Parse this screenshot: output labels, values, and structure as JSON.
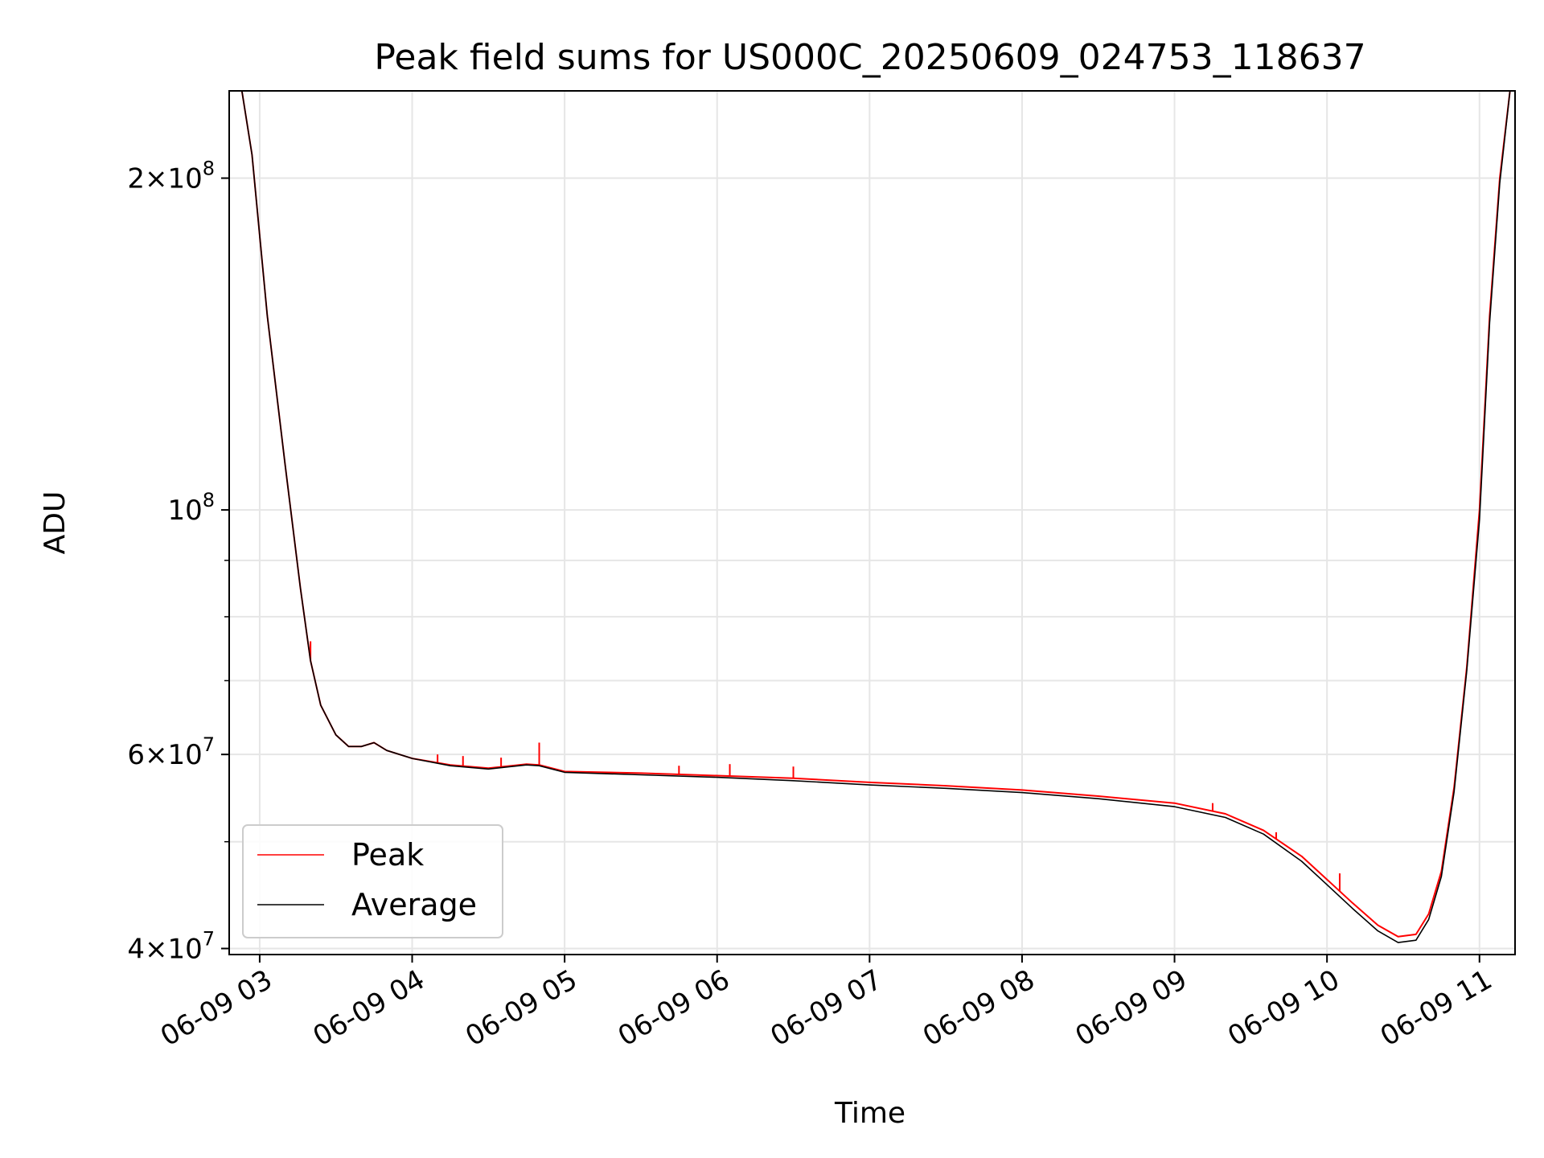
{
  "chart_data": {
    "type": "line",
    "title": "Peak field sums for US000C_20250609_024753_118637",
    "xlabel": "Time",
    "ylabel": "ADU",
    "yscale": "log",
    "ylim": [
      39500000,
      240000000
    ],
    "xlim": [
      "2025-06-09 02:48",
      "2025-06-09 11:14"
    ],
    "grid": true,
    "legend_position": "lower-left",
    "x_tick_labels": [
      "06-09 03",
      "06-09 04",
      "06-09 05",
      "06-09 06",
      "06-09 07",
      "06-09 08",
      "06-09 09",
      "06-09 10",
      "06-09 11"
    ],
    "x_ticks": [
      "2025-06-09 03:00",
      "2025-06-09 04:00",
      "2025-06-09 05:00",
      "2025-06-09 06:00",
      "2025-06-09 07:00",
      "2025-06-09 08:00",
      "2025-06-09 09:00",
      "2025-06-09 10:00",
      "2025-06-09 11:00"
    ],
    "y_major_ticks": [
      {
        "value": 40000000,
        "mantissa": "4",
        "exp": "7"
      },
      {
        "value": 60000000,
        "mantissa": "6",
        "exp": "7"
      },
      {
        "value": 100000000,
        "mantissa": "",
        "exp": "8"
      },
      {
        "value": 200000000,
        "mantissa": "2",
        "exp": "8"
      }
    ],
    "y_minor_grid": [
      50000000,
      70000000,
      80000000,
      90000000
    ],
    "series": [
      {
        "name": "Peak",
        "color": "#ff0000",
        "x": [
          "2025-06-09 02:53",
          "2025-06-09 02:57",
          "2025-06-09 03:03",
          "2025-06-09 03:10",
          "2025-06-09 03:16",
          "2025-06-09 03:20",
          "2025-06-09 03:24",
          "2025-06-09 03:30",
          "2025-06-09 03:35",
          "2025-06-09 03:40",
          "2025-06-09 03:45",
          "2025-06-09 03:50",
          "2025-06-09 04:00",
          "2025-06-09 04:15",
          "2025-06-09 04:30",
          "2025-06-09 04:45",
          "2025-06-09 04:50",
          "2025-06-09 05:00",
          "2025-06-09 05:30",
          "2025-06-09 06:00",
          "2025-06-09 06:30",
          "2025-06-09 07:00",
          "2025-06-09 07:30",
          "2025-06-09 08:00",
          "2025-06-09 08:30",
          "2025-06-09 09:00",
          "2025-06-09 09:20",
          "2025-06-09 09:35",
          "2025-06-09 09:50",
          "2025-06-09 10:00",
          "2025-06-09 10:10",
          "2025-06-09 10:20",
          "2025-06-09 10:28",
          "2025-06-09 10:35",
          "2025-06-09 10:40",
          "2025-06-09 10:45",
          "2025-06-09 10:50",
          "2025-06-09 10:55",
          "2025-06-09 11:00",
          "2025-06-09 11:04",
          "2025-06-09 11:08",
          "2025-06-09 11:12"
        ],
        "values": [
          240000000,
          210000000,
          150000000,
          110000000,
          85000000,
          73000000,
          66500000,
          62500000,
          61000000,
          61000000,
          61500000,
          60500000,
          59500000,
          58700000,
          58300000,
          58800000,
          58700000,
          57900000,
          57700000,
          57400000,
          57100000,
          56600000,
          56200000,
          55700000,
          55000000,
          54200000,
          53000000,
          51200000,
          48500000,
          46200000,
          44000000,
          42000000,
          41000000,
          41200000,
          43000000,
          47000000,
          56000000,
          72000000,
          100000000,
          150000000,
          200000000,
          240000000
        ],
        "spikes": [
          {
            "x": "2025-06-09 03:20",
            "value": 76000000
          },
          {
            "x": "2025-06-09 04:50",
            "value": 61500000
          },
          {
            "x": "2025-06-09 04:10",
            "value": 60000000
          },
          {
            "x": "2025-06-09 04:20",
            "value": 59800000
          },
          {
            "x": "2025-06-09 04:35",
            "value": 59600000
          },
          {
            "x": "2025-06-09 05:45",
            "value": 58600000
          },
          {
            "x": "2025-06-09 06:05",
            "value": 58800000
          },
          {
            "x": "2025-06-09 06:30",
            "value": 58500000
          },
          {
            "x": "2025-06-09 09:15",
            "value": 54200000
          },
          {
            "x": "2025-06-09 09:40",
            "value": 51000000
          },
          {
            "x": "2025-06-09 10:05",
            "value": 46800000
          }
        ]
      },
      {
        "name": "Average",
        "color": "#000000",
        "x": [
          "2025-06-09 02:53",
          "2025-06-09 02:57",
          "2025-06-09 03:03",
          "2025-06-09 03:10",
          "2025-06-09 03:16",
          "2025-06-09 03:20",
          "2025-06-09 03:24",
          "2025-06-09 03:30",
          "2025-06-09 03:35",
          "2025-06-09 03:40",
          "2025-06-09 03:45",
          "2025-06-09 03:50",
          "2025-06-09 04:00",
          "2025-06-09 04:15",
          "2025-06-09 04:30",
          "2025-06-09 04:45",
          "2025-06-09 04:50",
          "2025-06-09 05:00",
          "2025-06-09 05:30",
          "2025-06-09 06:00",
          "2025-06-09 06:30",
          "2025-06-09 07:00",
          "2025-06-09 07:30",
          "2025-06-09 08:00",
          "2025-06-09 08:30",
          "2025-06-09 09:00",
          "2025-06-09 09:20",
          "2025-06-09 09:35",
          "2025-06-09 09:50",
          "2025-06-09 10:00",
          "2025-06-09 10:10",
          "2025-06-09 10:20",
          "2025-06-09 10:28",
          "2025-06-09 10:35",
          "2025-06-09 10:40",
          "2025-06-09 10:45",
          "2025-06-09 10:50",
          "2025-06-09 10:55",
          "2025-06-09 11:00",
          "2025-06-09 11:04",
          "2025-06-09 11:08",
          "2025-06-09 11:12"
        ],
        "values": [
          240000000,
          210000000,
          150000000,
          110000000,
          85000000,
          73000000,
          66500000,
          62500000,
          61000000,
          61000000,
          61500000,
          60500000,
          59500000,
          58600000,
          58200000,
          58700000,
          58600000,
          57800000,
          57500000,
          57200000,
          56800000,
          56300000,
          55900000,
          55400000,
          54700000,
          53800000,
          52600000,
          50800000,
          48000000,
          45700000,
          43500000,
          41500000,
          40500000,
          40700000,
          42500000,
          46500000,
          55500000,
          71500000,
          98000000,
          148000000,
          198000000,
          240000000
        ]
      }
    ]
  }
}
